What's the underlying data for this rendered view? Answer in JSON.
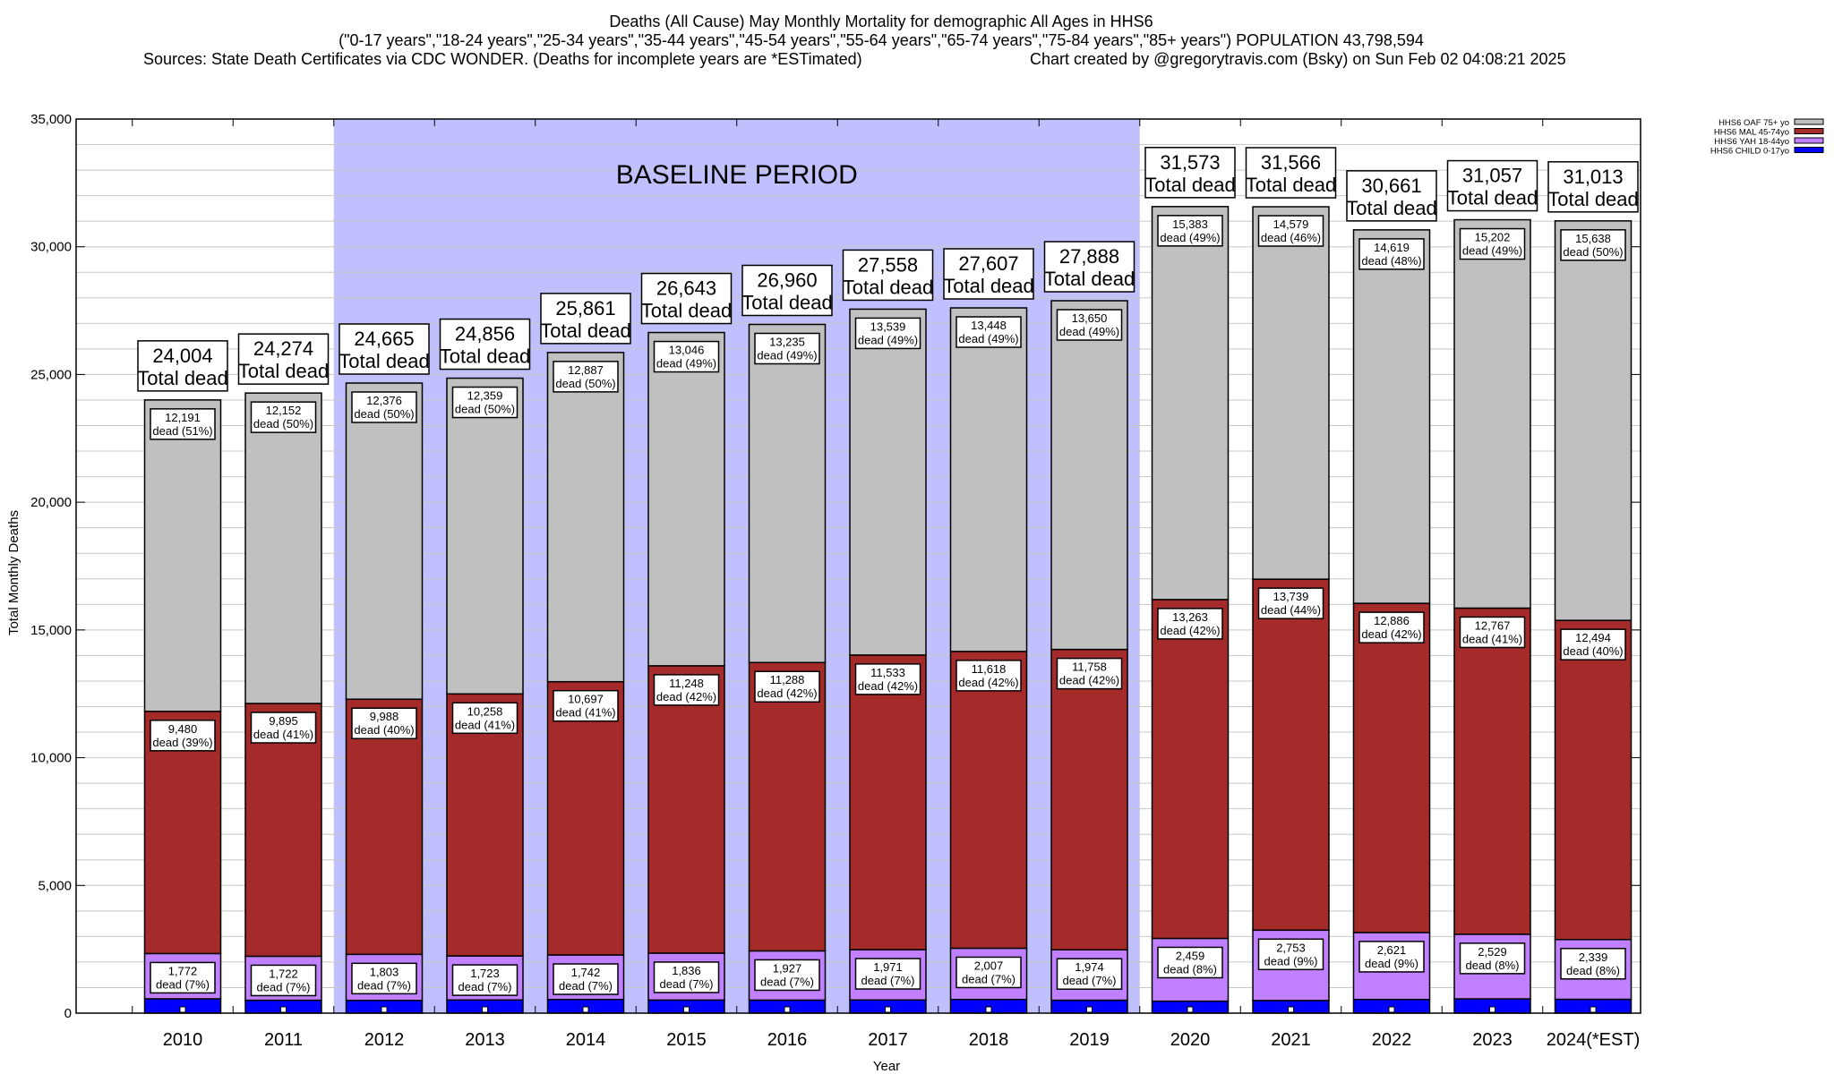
{
  "chart_data": {
    "type": "bar",
    "stacked": true,
    "title_lines": [
      "Deaths (All Cause) May Monthly Mortality for demographic All Ages in HHS6",
      "(\"0-17 years\",\"18-24 years\",\"25-34 years\",\"35-44 years\",\"45-54 years\",\"55-64 years\",\"65-74 years\",\"75-84 years\",\"85+ years\") POPULATION 43,798,594"
    ],
    "sources": "Sources: State Death Certificates via CDC WONDER. (Deaths for incomplete years are *ESTimated)",
    "credit": "Chart created by @gregorytravis.com (Bsky) on Sun Feb 02 04:08:21 2025",
    "xlabel": "Year",
    "ylabel": "Total Monthly Deaths",
    "ylim": [
      0,
      35000
    ],
    "yticks": [
      "0",
      "5,000",
      "10,000",
      "15,000",
      "20,000",
      "25,000",
      "30,000",
      "35,000"
    ],
    "grid": true,
    "legend_placement": "top-right",
    "annotation": "BASELINE PERIOD",
    "baseline_range": [
      "2012",
      "2019"
    ],
    "total_suffix": "Total dead",
    "categories": [
      "2010",
      "2011",
      "2012",
      "2013",
      "2014",
      "2015",
      "2016",
      "2017",
      "2018",
      "2019",
      "2020",
      "2021",
      "2022",
      "2023",
      "2024(*EST)"
    ],
    "totals": [
      24004,
      24274,
      24665,
      24856,
      25861,
      26643,
      26960,
      27558,
      27607,
      27888,
      31573,
      31566,
      30661,
      31057,
      31013
    ],
    "total_labels": [
      "24,004",
      "24,274",
      "24,665",
      "24,856",
      "25,861",
      "26,643",
      "26,960",
      "27,558",
      "27,607",
      "27,888",
      "31,573",
      "31,566",
      "30,661",
      "31,057",
      "31,013"
    ],
    "series": [
      {
        "name": "HHS6 CHILD 0-17yo",
        "color": "#0000ff",
        "values": [
          561,
          505,
          498,
          516,
          535,
          513,
          510,
          515,
          534,
          506,
          468,
          495,
          535,
          559,
          542
        ],
        "labels": []
      },
      {
        "name": "HHS6 YAH 18-44yo",
        "color": "#c080ff",
        "values": [
          1772,
          1722,
          1803,
          1723,
          1742,
          1836,
          1927,
          1971,
          2007,
          1974,
          2459,
          2753,
          2621,
          2529,
          2339
        ],
        "labels": [
          "1,772|dead (7%)",
          "1,722|dead (7%)",
          "1,803|dead (7%)",
          "1,723|dead (7%)",
          "1,742|dead (7%)",
          "1,836|dead (7%)",
          "1,927|dead (7%)",
          "1,971|dead (7%)",
          "2,007|dead (7%)",
          "1,974|dead (7%)",
          "2,459|dead (8%)",
          "2,753|dead (9%)",
          "2,621|dead (9%)",
          "2,529|dead (8%)",
          "2,339|dead (8%)"
        ]
      },
      {
        "name": "HHS6 MAL 45-74yo",
        "color": "#a52a2a",
        "values": [
          9480,
          9895,
          9988,
          10258,
          10697,
          11248,
          11288,
          11533,
          11618,
          11758,
          13263,
          13739,
          12886,
          12767,
          12494
        ],
        "labels": [
          "9,480|dead (39%)",
          "9,895|dead (41%)",
          "9,988|dead (40%)",
          "10,258|dead (41%)",
          "10,697|dead (41%)",
          "11,248|dead (42%)",
          "11,288|dead (42%)",
          "11,533|dead (42%)",
          "11,618|dead (42%)",
          "11,758|dead (42%)",
          "13,263|dead (42%)",
          "13,739|dead (44%)",
          "12,886|dead (42%)",
          "12,767|dead (41%)",
          "12,494|dead (40%)"
        ]
      },
      {
        "name": "HHS6 OAF 75+ yo",
        "color": "#c0c0c0",
        "values": [
          12191,
          12152,
          12376,
          12359,
          12887,
          13046,
          13235,
          13539,
          13448,
          13650,
          15383,
          14579,
          14619,
          15202,
          15638
        ],
        "labels": [
          "12,191|dead (51%)",
          "12,152|dead (50%)",
          "12,376|dead (50%)",
          "12,359|dead (50%)",
          "12,887|dead (50%)",
          "13,046|dead (49%)",
          "13,235|dead (49%)",
          "13,539|dead (49%)",
          "13,448|dead (49%)",
          "13,650|dead (49%)",
          "15,383|dead (49%)",
          "14,579|dead (46%)",
          "14,619|dead (48%)",
          "15,202|dead (49%)",
          "15,638|dead (50%)"
        ]
      }
    ],
    "legend_order": [
      "HHS6 OAF 75+ yo",
      "HHS6 MAL 45-74yo",
      "HHS6 YAH 18-44yo",
      "HHS6 CHILD 0-17yo"
    ],
    "colors": {
      "baseline_shade": "#c0c0ff",
      "grid": "#c8c8c8"
    }
  }
}
